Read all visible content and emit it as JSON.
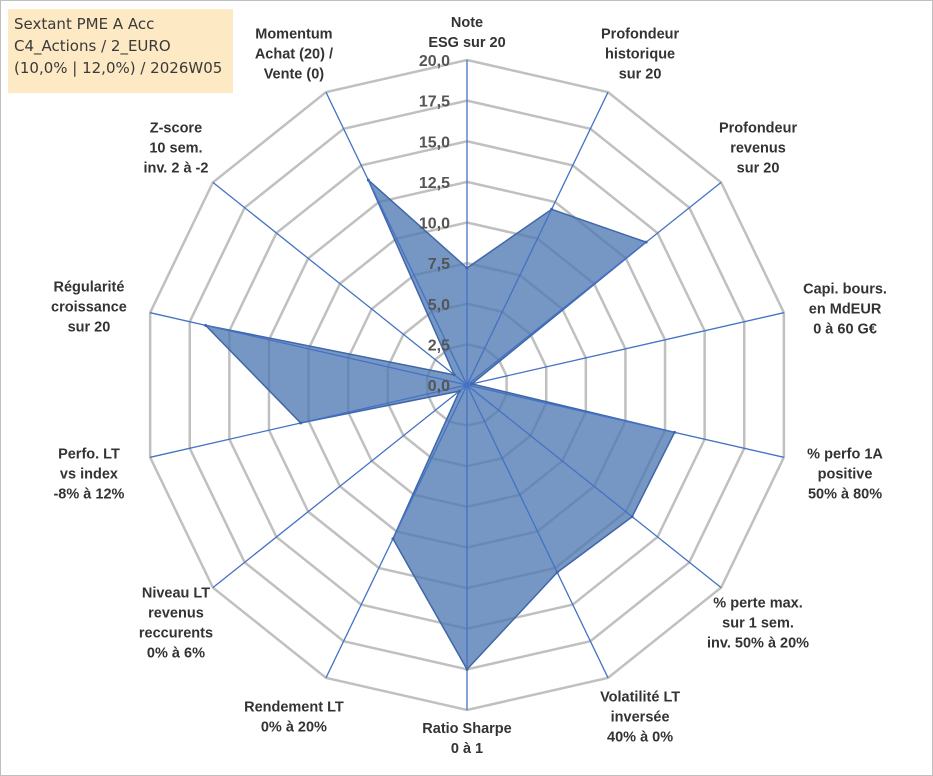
{
  "info": {
    "line1": "Sextant PME A Acc",
    "line2": "C4_Actions / 2_EURO",
    "line3": "(10,0% | 12,0%) / 2026W05"
  },
  "colors": {
    "fill": "#4f79b3",
    "fill_opacity": 0.78,
    "stroke": "#3f67a8",
    "spoke": "#4472c4",
    "grid": "#c0c0c0"
  },
  "chart_data": {
    "type": "radar",
    "title": "",
    "rmin": 0,
    "rmax": 20,
    "tick_step": 2.5,
    "tick_labels": [
      "0,0",
      "2,5",
      "5,0",
      "7,5",
      "10,0",
      "12,5",
      "15,0",
      "17,5",
      "20,0"
    ],
    "axes": [
      {
        "label": [
          "Note",
          "ESG sur 20"
        ],
        "value": 7.2
      },
      {
        "label": [
          "Profondeur",
          "historique",
          "sur 20"
        ],
        "value": 12.0
      },
      {
        "label": [
          "Profondeur",
          "revenus",
          "sur 20"
        ],
        "value": 14.1
      },
      {
        "label": [
          "Capi. bours.",
          "en MdEUR",
          "0 à 60 G€"
        ],
        "value": 0.3
      },
      {
        "label": [
          "% perfo 1A",
          "positive",
          "50% à 80%"
        ],
        "value": 13.1
      },
      {
        "label": [
          "% perte max.",
          "sur 1 sem.",
          "inv. 50% à 20%"
        ],
        "value": 13.0
      },
      {
        "label": [
          "Volatilité LT",
          "inversée",
          "40% à 0%"
        ],
        "value": 12.8
      },
      {
        "label": [
          "Ratio Sharpe",
          "0 à 1"
        ],
        "value": 17.5
      },
      {
        "label": [
          "Rendement LT",
          "0% à 20%"
        ],
        "value": 10.5
      },
      {
        "label": [
          "Niveau LT",
          "revenus",
          "reccurents",
          "0% à 6%"
        ],
        "value": 0.6
      },
      {
        "label": [
          "Perfo. LT",
          "vs index",
          "-8% à 12%"
        ],
        "value": 10.5
      },
      {
        "label": [
          "Régularité",
          "croissance",
          "sur 20"
        ],
        "value": 16.5
      },
      {
        "label": [
          "Z-score",
          "10 sem.",
          "inv. 2 à -2"
        ],
        "value": 1.0
      },
      {
        "label": [
          "Momentum",
          "Achat (20) /",
          "Vente (0)"
        ],
        "value": 14.0
      }
    ]
  }
}
